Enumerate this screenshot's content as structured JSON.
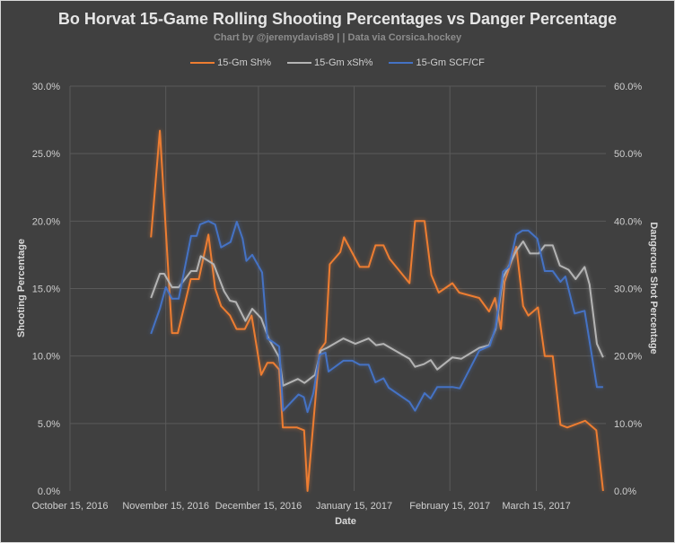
{
  "chart_data": {
    "type": "line",
    "title": "Bo Horvat 15-Game Rolling Shooting Percentages vs Danger Percentage",
    "subtitle": "Chart by @jeremydavis89 | | Data via Corsica.hockey",
    "xlabel": "Date",
    "ylabel": "Shooting Percentage",
    "y2label": "Dangerous Shot Percentage",
    "x_unit": "days since October 15, 2016",
    "xlim": [
      0,
      173.5
    ],
    "ylim": [
      0,
      30
    ],
    "y2lim": [
      0,
      60
    ],
    "grid": true,
    "legend_position": "top",
    "x_ticks": [
      {
        "day": 0,
        "label": "October 15, 2016"
      },
      {
        "day": 31,
        "label": "November 15, 2016"
      },
      {
        "day": 61,
        "label": "December 15, 2016"
      },
      {
        "day": 92,
        "label": "January 15, 2017"
      },
      {
        "day": 123,
        "label": "February 15, 2017"
      },
      {
        "day": 151,
        "label": "March 15, 2017"
      }
    ],
    "y_ticks": [
      "0.0%",
      "5.0%",
      "10.0%",
      "15.0%",
      "20.0%",
      "25.0%",
      "30.0%"
    ],
    "y2_ticks": [
      "0.0%",
      "10.0%",
      "20.0%",
      "30.0%",
      "40.0%",
      "50.0%",
      "60.0%"
    ],
    "series": [
      {
        "name": "15-Gm Sh%",
        "axis": "left",
        "color": "#ED7D31",
        "points": [
          [
            26.2,
            18.8
          ],
          [
            29.1,
            26.7
          ],
          [
            33.0,
            11.7
          ],
          [
            34.9,
            11.7
          ],
          [
            39.1,
            15.7
          ],
          [
            41.7,
            15.7
          ],
          [
            44.8,
            19.0
          ],
          [
            47.0,
            15.0
          ],
          [
            48.9,
            13.7
          ],
          [
            51.8,
            13.0
          ],
          [
            53.9,
            12.0
          ],
          [
            56.6,
            12.0
          ],
          [
            58.8,
            13.0
          ],
          [
            61.9,
            8.6
          ],
          [
            63.9,
            9.5
          ],
          [
            65.8,
            9.5
          ],
          [
            67.7,
            9.0
          ],
          [
            68.9,
            4.7
          ],
          [
            73.5,
            4.7
          ],
          [
            75.8,
            4.5
          ],
          [
            76.9,
            0.0
          ],
          [
            80.8,
            10.4
          ],
          [
            82.7,
            11.0
          ],
          [
            84.1,
            16.8
          ],
          [
            87.5,
            17.7
          ],
          [
            88.7,
            18.8
          ],
          [
            93.8,
            16.6
          ],
          [
            96.7,
            16.6
          ],
          [
            98.9,
            18.2
          ],
          [
            101.5,
            18.2
          ],
          [
            103.5,
            17.2
          ],
          [
            109.9,
            15.4
          ],
          [
            111.7,
            20.0
          ],
          [
            114.8,
            20.0
          ],
          [
            117.0,
            16.0
          ],
          [
            119.4,
            14.7
          ],
          [
            123.8,
            15.4
          ],
          [
            126.0,
            14.7
          ],
          [
            132.5,
            14.3
          ],
          [
            135.7,
            13.3
          ],
          [
            137.6,
            14.3
          ],
          [
            139.5,
            12.0
          ],
          [
            140.7,
            15.5
          ],
          [
            144.5,
            18.1
          ],
          [
            146.7,
            13.7
          ],
          [
            148.4,
            13.0
          ],
          [
            151.5,
            13.6
          ],
          [
            153.7,
            10.0
          ],
          [
            156.3,
            10.0
          ],
          [
            158.8,
            4.9
          ],
          [
            161.0,
            4.7
          ],
          [
            166.8,
            5.2
          ],
          [
            170.4,
            4.5
          ],
          [
            172.6,
            0.0
          ]
        ]
      },
      {
        "name": "15-Gm xSh%",
        "axis": "left",
        "color": "#B4B4B4",
        "points": [
          [
            26.2,
            14.3
          ],
          [
            29.1,
            16.1
          ],
          [
            30.5,
            16.1
          ],
          [
            33.0,
            15.1
          ],
          [
            35.2,
            15.1
          ],
          [
            39.2,
            16.3
          ],
          [
            41.0,
            16.3
          ],
          [
            42.3,
            17.4
          ],
          [
            46.5,
            16.8
          ],
          [
            49.9,
            14.8
          ],
          [
            51.8,
            14.1
          ],
          [
            53.7,
            14.0
          ],
          [
            56.8,
            12.6
          ],
          [
            59.0,
            13.5
          ],
          [
            61.9,
            12.8
          ],
          [
            64.3,
            11.3
          ],
          [
            67.7,
            9.9
          ],
          [
            69.0,
            7.8
          ],
          [
            73.8,
            8.3
          ],
          [
            75.9,
            8.0
          ],
          [
            79.3,
            8.6
          ],
          [
            81.2,
            10.4
          ],
          [
            83.2,
            10.6
          ],
          [
            88.5,
            11.3
          ],
          [
            92.4,
            10.9
          ],
          [
            96.7,
            11.3
          ],
          [
            99.1,
            10.8
          ],
          [
            101.5,
            10.9
          ],
          [
            103.0,
            10.7
          ],
          [
            109.9,
            9.8
          ],
          [
            111.7,
            9.2
          ],
          [
            114.6,
            9.4
          ],
          [
            116.8,
            9.7
          ],
          [
            118.9,
            9.0
          ],
          [
            123.8,
            9.9
          ],
          [
            126.7,
            9.8
          ],
          [
            132.5,
            10.6
          ],
          [
            135.7,
            10.8
          ],
          [
            137.8,
            12.0
          ],
          [
            140.2,
            15.8
          ],
          [
            144.5,
            17.8
          ],
          [
            146.7,
            18.5
          ],
          [
            148.9,
            17.6
          ],
          [
            151.8,
            17.6
          ],
          [
            153.7,
            18.2
          ],
          [
            156.3,
            18.2
          ],
          [
            158.6,
            16.7
          ],
          [
            161.4,
            16.4
          ],
          [
            163.7,
            15.7
          ],
          [
            166.6,
            16.6
          ],
          [
            168.2,
            15.3
          ],
          [
            170.6,
            10.9
          ],
          [
            172.6,
            9.9
          ]
        ]
      },
      {
        "name": "15-Gm SCF/CF",
        "axis": "right",
        "color": "#4472C4",
        "points": [
          [
            26.2,
            23.3
          ],
          [
            29.1,
            27.0
          ],
          [
            31.0,
            30.2
          ],
          [
            33.0,
            28.5
          ],
          [
            35.2,
            28.5
          ],
          [
            39.2,
            37.8
          ],
          [
            41.0,
            37.8
          ],
          [
            42.1,
            39.5
          ],
          [
            44.8,
            40.0
          ],
          [
            47.0,
            39.5
          ],
          [
            48.9,
            36.1
          ],
          [
            52.0,
            36.9
          ],
          [
            54.0,
            39.9
          ],
          [
            55.9,
            37.4
          ],
          [
            57.1,
            34.1
          ],
          [
            59.0,
            35.0
          ],
          [
            62.2,
            32.4
          ],
          [
            63.9,
            22.6
          ],
          [
            66.3,
            21.9
          ],
          [
            67.7,
            21.4
          ],
          [
            69.0,
            11.9
          ],
          [
            74.0,
            14.3
          ],
          [
            75.7,
            13.9
          ],
          [
            76.9,
            11.7
          ],
          [
            78.8,
            14.5
          ],
          [
            80.8,
            20.2
          ],
          [
            82.7,
            20.5
          ],
          [
            83.7,
            17.7
          ],
          [
            88.5,
            19.3
          ],
          [
            91.4,
            19.3
          ],
          [
            93.8,
            18.7
          ],
          [
            96.7,
            18.7
          ],
          [
            98.9,
            16.1
          ],
          [
            101.5,
            16.7
          ],
          [
            103.2,
            15.3
          ],
          [
            109.9,
            13.2
          ],
          [
            111.7,
            11.9
          ],
          [
            114.8,
            14.5
          ],
          [
            116.7,
            13.7
          ],
          [
            118.9,
            15.4
          ],
          [
            123.8,
            15.4
          ],
          [
            126.2,
            15.2
          ],
          [
            132.5,
            20.8
          ],
          [
            135.9,
            21.5
          ],
          [
            137.8,
            24.3
          ],
          [
            140.2,
            32.5
          ],
          [
            142.1,
            33.2
          ],
          [
            144.5,
            38.0
          ],
          [
            146.5,
            38.6
          ],
          [
            148.4,
            38.6
          ],
          [
            151.3,
            37.4
          ],
          [
            153.7,
            32.6
          ],
          [
            156.3,
            32.6
          ],
          [
            158.8,
            31.0
          ],
          [
            160.4,
            31.8
          ],
          [
            163.4,
            26.3
          ],
          [
            166.6,
            26.7
          ],
          [
            170.6,
            15.4
          ],
          [
            172.6,
            15.4
          ]
        ]
      }
    ]
  }
}
